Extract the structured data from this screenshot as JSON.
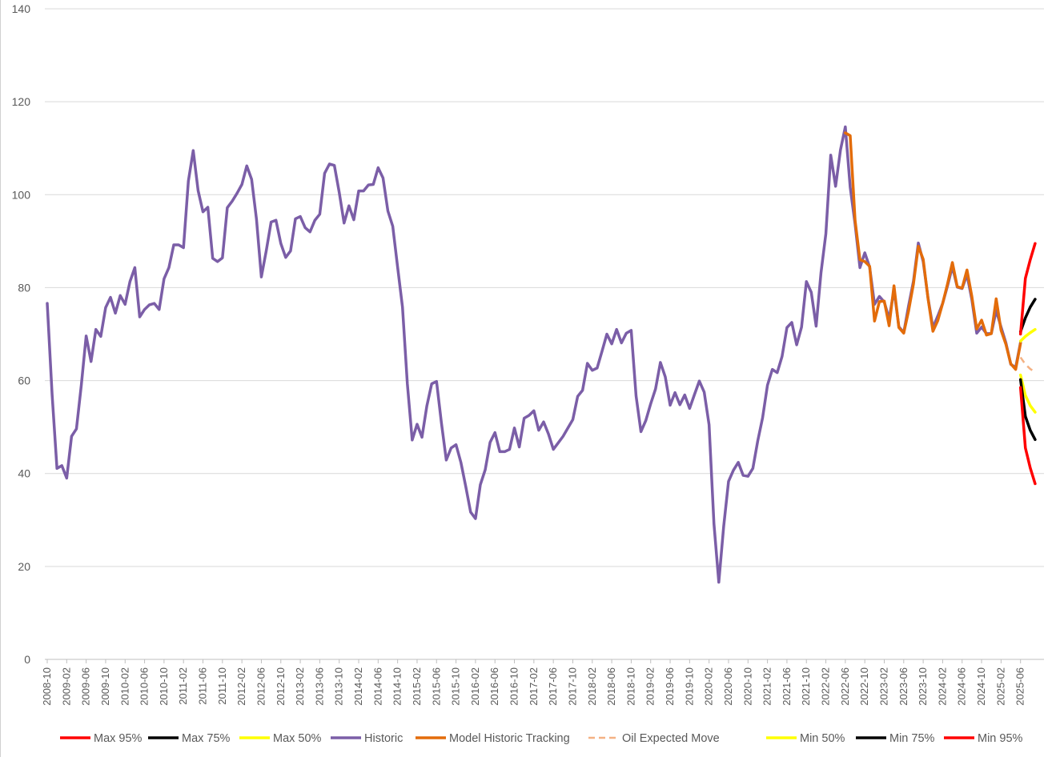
{
  "chart_data": {
    "type": "line",
    "title": "",
    "xlabel": "",
    "ylabel": "",
    "ylim": [
      0,
      140
    ],
    "y_ticks": [
      0,
      20,
      40,
      60,
      80,
      100,
      120,
      140
    ],
    "x_start": "2008-10",
    "x_end": "2025-10",
    "x_tick_labels": [
      "2008-10",
      "2009-02",
      "2009-06",
      "2009-10",
      "2010-02",
      "2010-06",
      "2010-10",
      "2011-02",
      "2011-06",
      "2011-10",
      "2012-02",
      "2012-06",
      "2012-10",
      "2013-02",
      "2013-06",
      "2013-10",
      "2014-02",
      "2014-06",
      "2014-10",
      "2015-02",
      "2015-06",
      "2015-10",
      "2016-02",
      "2016-06",
      "2016-10",
      "2017-02",
      "2017-06",
      "2017-10",
      "2018-02",
      "2018-06",
      "2018-10",
      "2019-02",
      "2019-06",
      "2019-10",
      "2020-02",
      "2020-06",
      "2020-10",
      "2021-02",
      "2021-06",
      "2021-10",
      "2022-02",
      "2022-06",
      "2022-10",
      "2023-02",
      "2023-06",
      "2023-10",
      "2024-02",
      "2024-06",
      "2024-10",
      "2025-02",
      "2025-06"
    ],
    "grid": true,
    "legend_position": "bottom",
    "legend": [
      "Max 95%",
      "Max 75%",
      "Max 50%",
      "Historic",
      "Model Historic Tracking",
      "Oil Expected Move",
      "Min 50%",
      "Min 75%",
      "Min 95%"
    ],
    "series": [
      {
        "name": "Max 95%",
        "color": "#ff0000",
        "dash": false,
        "points": [
          [
            "2025-06",
            70
          ],
          [
            "2025-07",
            82
          ],
          [
            "2025-08",
            86
          ],
          [
            "2025-09",
            89.5
          ]
        ]
      },
      {
        "name": "Max 75%",
        "color": "#000000",
        "dash": false,
        "points": [
          [
            "2025-06",
            70.5
          ],
          [
            "2025-07",
            73.5
          ],
          [
            "2025-08",
            75.8
          ],
          [
            "2025-09",
            77.5
          ]
        ]
      },
      {
        "name": "Max 50%",
        "color": "#ffff00",
        "dash": false,
        "points": [
          [
            "2025-06",
            68.5
          ],
          [
            "2025-07",
            69.5
          ],
          [
            "2025-08",
            70.3
          ],
          [
            "2025-09",
            71
          ]
        ]
      },
      {
        "name": "Historic",
        "color": "#7b5ea7",
        "dash": false,
        "points": [
          [
            "2008-10",
            76.6
          ],
          [
            "2008-11",
            57
          ],
          [
            "2008-12",
            41.1
          ],
          [
            "2009-01",
            41.7
          ],
          [
            "2009-02",
            39
          ],
          [
            "2009-03",
            48
          ],
          [
            "2009-04",
            49.6
          ],
          [
            "2009-05",
            59
          ],
          [
            "2009-06",
            69.6
          ],
          [
            "2009-07",
            64.1
          ],
          [
            "2009-08",
            71
          ],
          [
            "2009-09",
            69.5
          ],
          [
            "2009-10",
            75.7
          ],
          [
            "2009-11",
            77.9
          ],
          [
            "2009-12",
            74.5
          ],
          [
            "2010-01",
            78.3
          ],
          [
            "2010-02",
            76.4
          ],
          [
            "2010-03",
            81.3
          ],
          [
            "2010-04",
            84.3
          ],
          [
            "2010-05",
            73.7
          ],
          [
            "2010-06",
            75.3
          ],
          [
            "2010-07",
            76.3
          ],
          [
            "2010-08",
            76.6
          ],
          [
            "2010-09",
            75.3
          ],
          [
            "2010-10",
            81.9
          ],
          [
            "2010-11",
            84.3
          ],
          [
            "2010-12",
            89.2
          ],
          [
            "2011-01",
            89.2
          ],
          [
            "2011-02",
            88.6
          ],
          [
            "2011-03",
            102.9
          ],
          [
            "2011-04",
            109.5
          ],
          [
            "2011-05",
            100.9
          ],
          [
            "2011-06",
            96.3
          ],
          [
            "2011-07",
            97.3
          ],
          [
            "2011-08",
            86.3
          ],
          [
            "2011-09",
            85.6
          ],
          [
            "2011-10",
            86.4
          ],
          [
            "2011-11",
            97.2
          ],
          [
            "2011-12",
            98.6
          ],
          [
            "2012-01",
            100.3
          ],
          [
            "2012-02",
            102.2
          ],
          [
            "2012-03",
            106.2
          ],
          [
            "2012-04",
            103.3
          ],
          [
            "2012-05",
            94.7
          ],
          [
            "2012-06",
            82.3
          ],
          [
            "2012-07",
            87.9
          ],
          [
            "2012-08",
            94.1
          ],
          [
            "2012-09",
            94.5
          ],
          [
            "2012-10",
            89.5
          ],
          [
            "2012-11",
            86.5
          ],
          [
            "2012-12",
            87.9
          ],
          [
            "2013-01",
            94.8
          ],
          [
            "2013-02",
            95.3
          ],
          [
            "2013-03",
            92.9
          ],
          [
            "2013-04",
            92
          ],
          [
            "2013-05",
            94.5
          ],
          [
            "2013-06",
            95.8
          ],
          [
            "2013-07",
            104.6
          ],
          [
            "2013-08",
            106.6
          ],
          [
            "2013-09",
            106.3
          ],
          [
            "2013-10",
            100.5
          ],
          [
            "2013-11",
            93.9
          ],
          [
            "2013-12",
            97.6
          ],
          [
            "2014-01",
            94.6
          ],
          [
            "2014-02",
            100.8
          ],
          [
            "2014-03",
            100.8
          ],
          [
            "2014-04",
            102.1
          ],
          [
            "2014-05",
            102.2
          ],
          [
            "2014-06",
            105.8
          ],
          [
            "2014-07",
            103.6
          ],
          [
            "2014-08",
            96.5
          ],
          [
            "2014-09",
            93.2
          ],
          [
            "2014-10",
            84.4
          ],
          [
            "2014-11",
            75.8
          ],
          [
            "2014-12",
            59.3
          ],
          [
            "2015-01",
            47.2
          ],
          [
            "2015-02",
            50.6
          ],
          [
            "2015-03",
            47.8
          ],
          [
            "2015-04",
            54.5
          ],
          [
            "2015-05",
            59.3
          ],
          [
            "2015-06",
            59.8
          ],
          [
            "2015-07",
            50.9
          ],
          [
            "2015-08",
            42.9
          ],
          [
            "2015-09",
            45.5
          ],
          [
            "2015-10",
            46.2
          ],
          [
            "2015-11",
            42.4
          ],
          [
            "2015-12",
            37.2
          ],
          [
            "2016-01",
            31.7
          ],
          [
            "2016-02",
            30.3
          ],
          [
            "2016-03",
            37.6
          ],
          [
            "2016-04",
            40.8
          ],
          [
            "2016-05",
            46.7
          ],
          [
            "2016-06",
            48.8
          ],
          [
            "2016-07",
            44.7
          ],
          [
            "2016-08",
            44.7
          ],
          [
            "2016-09",
            45.2
          ],
          [
            "2016-10",
            49.8
          ],
          [
            "2016-11",
            45.7
          ],
          [
            "2016-12",
            51.9
          ],
          [
            "2017-01",
            52.5
          ],
          [
            "2017-02",
            53.5
          ],
          [
            "2017-03",
            49.3
          ],
          [
            "2017-04",
            51.1
          ],
          [
            "2017-05",
            48.5
          ],
          [
            "2017-06",
            45.2
          ],
          [
            "2017-07",
            46.6
          ],
          [
            "2017-08",
            48
          ],
          [
            "2017-09",
            49.8
          ],
          [
            "2017-10",
            51.6
          ],
          [
            "2017-11",
            56.6
          ],
          [
            "2017-12",
            57.9
          ],
          [
            "2018-01",
            63.7
          ],
          [
            "2018-02",
            62.2
          ],
          [
            "2018-03",
            62.7
          ],
          [
            "2018-04",
            66.3
          ],
          [
            "2018-05",
            70
          ],
          [
            "2018-06",
            67.9
          ],
          [
            "2018-07",
            71
          ],
          [
            "2018-08",
            68.1
          ],
          [
            "2018-09",
            70.2
          ],
          [
            "2018-10",
            70.8
          ],
          [
            "2018-11",
            56.7
          ],
          [
            "2018-12",
            49
          ],
          [
            "2019-01",
            51.4
          ],
          [
            "2019-02",
            55
          ],
          [
            "2019-03",
            58.2
          ],
          [
            "2019-04",
            63.9
          ],
          [
            "2019-05",
            60.8
          ],
          [
            "2019-06",
            54.7
          ],
          [
            "2019-07",
            57.4
          ],
          [
            "2019-08",
            54.8
          ],
          [
            "2019-09",
            56.9
          ],
          [
            "2019-10",
            54
          ],
          [
            "2019-11",
            57
          ],
          [
            "2019-12",
            59.9
          ],
          [
            "2020-01",
            57.5
          ],
          [
            "2020-02",
            50.5
          ],
          [
            "2020-03",
            29.2
          ],
          [
            "2020-04",
            16.6
          ],
          [
            "2020-05",
            28.6
          ],
          [
            "2020-06",
            38.3
          ],
          [
            "2020-07",
            40.7
          ],
          [
            "2020-08",
            42.4
          ],
          [
            "2020-09",
            39.6
          ],
          [
            "2020-10",
            39.4
          ],
          [
            "2020-11",
            41.1
          ],
          [
            "2020-12",
            47
          ],
          [
            "2021-01",
            52
          ],
          [
            "2021-02",
            59
          ],
          [
            "2021-03",
            62.4
          ],
          [
            "2021-04",
            61.7
          ],
          [
            "2021-05",
            65.2
          ],
          [
            "2021-06",
            71.4
          ],
          [
            "2021-07",
            72.5
          ],
          [
            "2021-08",
            67.7
          ],
          [
            "2021-09",
            71.5
          ],
          [
            "2021-10",
            81.3
          ],
          [
            "2021-11",
            79
          ],
          [
            "2021-12",
            71.7
          ],
          [
            "2022-01",
            83.2
          ],
          [
            "2022-02",
            91.6
          ],
          [
            "2022-03",
            108.5
          ],
          [
            "2022-04",
            101.8
          ],
          [
            "2022-05",
            109.6
          ],
          [
            "2022-06",
            114.6
          ],
          [
            "2022-07",
            101.6
          ],
          [
            "2022-08",
            93.7
          ],
          [
            "2022-09",
            84.3
          ],
          [
            "2022-10",
            87.5
          ],
          [
            "2022-11",
            84.4
          ],
          [
            "2022-12",
            76.4
          ],
          [
            "2023-01",
            78.1
          ],
          [
            "2023-02",
            76.9
          ],
          [
            "2023-03",
            73.3
          ],
          [
            "2023-04",
            79.5
          ],
          [
            "2023-05",
            71.6
          ],
          [
            "2023-06",
            70.3
          ],
          [
            "2023-07",
            76.1
          ],
          [
            "2023-08",
            81.4
          ],
          [
            "2023-09",
            89.6
          ],
          [
            "2023-10",
            85.6
          ],
          [
            "2023-11",
            77.7
          ],
          [
            "2023-12",
            71.4
          ],
          [
            "2024-01",
            73.9
          ],
          [
            "2024-02",
            76.6
          ],
          [
            "2024-03",
            80.4
          ],
          [
            "2024-04",
            84.5
          ],
          [
            "2024-05",
            80.1
          ],
          [
            "2024-06",
            79.8
          ],
          [
            "2024-07",
            82.8
          ],
          [
            "2024-08",
            77.4
          ],
          [
            "2024-09",
            70.2
          ],
          [
            "2024-10",
            71.5
          ],
          [
            "2024-11",
            70.1
          ],
          [
            "2024-12",
            70.1
          ],
          [
            "2025-01",
            75.1
          ],
          [
            "2025-02",
            71.5
          ],
          [
            "2025-03",
            68.1
          ],
          [
            "2025-04",
            63.5
          ],
          [
            "2025-05",
            62.8
          ],
          [
            "2025-06",
            68.2
          ]
        ]
      },
      {
        "name": "Model Historic Tracking",
        "color": "#e36c0a",
        "dash": false,
        "points": [
          [
            "2022-06",
            113.3
          ],
          [
            "2022-07",
            112.7
          ],
          [
            "2022-08",
            94.5
          ],
          [
            "2022-09",
            86
          ],
          [
            "2022-10",
            85.6
          ],
          [
            "2022-11",
            84.6
          ],
          [
            "2022-12",
            72.8
          ],
          [
            "2023-01",
            77
          ],
          [
            "2023-02",
            77.1
          ],
          [
            "2023-03",
            71.8
          ],
          [
            "2023-04",
            80.4
          ],
          [
            "2023-05",
            71.4
          ],
          [
            "2023-06",
            70.2
          ],
          [
            "2023-07",
            75
          ],
          [
            "2023-08",
            80.8
          ],
          [
            "2023-09",
            88.9
          ],
          [
            "2023-10",
            86.1
          ],
          [
            "2023-11",
            77.6
          ],
          [
            "2023-12",
            70.6
          ],
          [
            "2024-01",
            72.9
          ],
          [
            "2024-02",
            76.6
          ],
          [
            "2024-03",
            80.8
          ],
          [
            "2024-04",
            85.4
          ],
          [
            "2024-05",
            80.2
          ],
          [
            "2024-06",
            79.9
          ],
          [
            "2024-07",
            83.8
          ],
          [
            "2024-08",
            78.1
          ],
          [
            "2024-09",
            71.1
          ],
          [
            "2024-10",
            73
          ],
          [
            "2024-11",
            69.8
          ],
          [
            "2024-12",
            70.1
          ],
          [
            "2025-01",
            77.6
          ],
          [
            "2025-02",
            70.8
          ],
          [
            "2025-03",
            67.8
          ],
          [
            "2025-04",
            63.6
          ],
          [
            "2025-05",
            62.4
          ],
          [
            "2025-06",
            68
          ]
        ]
      },
      {
        "name": "Oil Expected Move",
        "color": "#f4b183",
        "dash": true,
        "points": [
          [
            "2025-06",
            65
          ],
          [
            "2025-07",
            63.5
          ],
          [
            "2025-08",
            62.5
          ],
          [
            "2025-09",
            61.8
          ]
        ]
      },
      {
        "name": "Min 50%",
        "color": "#ffff00",
        "dash": false,
        "points": [
          [
            "2025-06",
            61.2
          ],
          [
            "2025-07",
            56.8
          ],
          [
            "2025-08",
            54.6
          ],
          [
            "2025-09",
            53.2
          ]
        ]
      },
      {
        "name": "Min 75%",
        "color": "#000000",
        "dash": false,
        "points": [
          [
            "2025-06",
            60.2
          ],
          [
            "2025-07",
            52.3
          ],
          [
            "2025-08",
            49.3
          ],
          [
            "2025-09",
            47.3
          ]
        ]
      },
      {
        "name": "Min 95%",
        "color": "#ff0000",
        "dash": false,
        "points": [
          [
            "2025-06",
            58.5
          ],
          [
            "2025-07",
            45.5
          ],
          [
            "2025-08",
            41.2
          ],
          [
            "2025-09",
            37.8
          ]
        ]
      }
    ]
  }
}
